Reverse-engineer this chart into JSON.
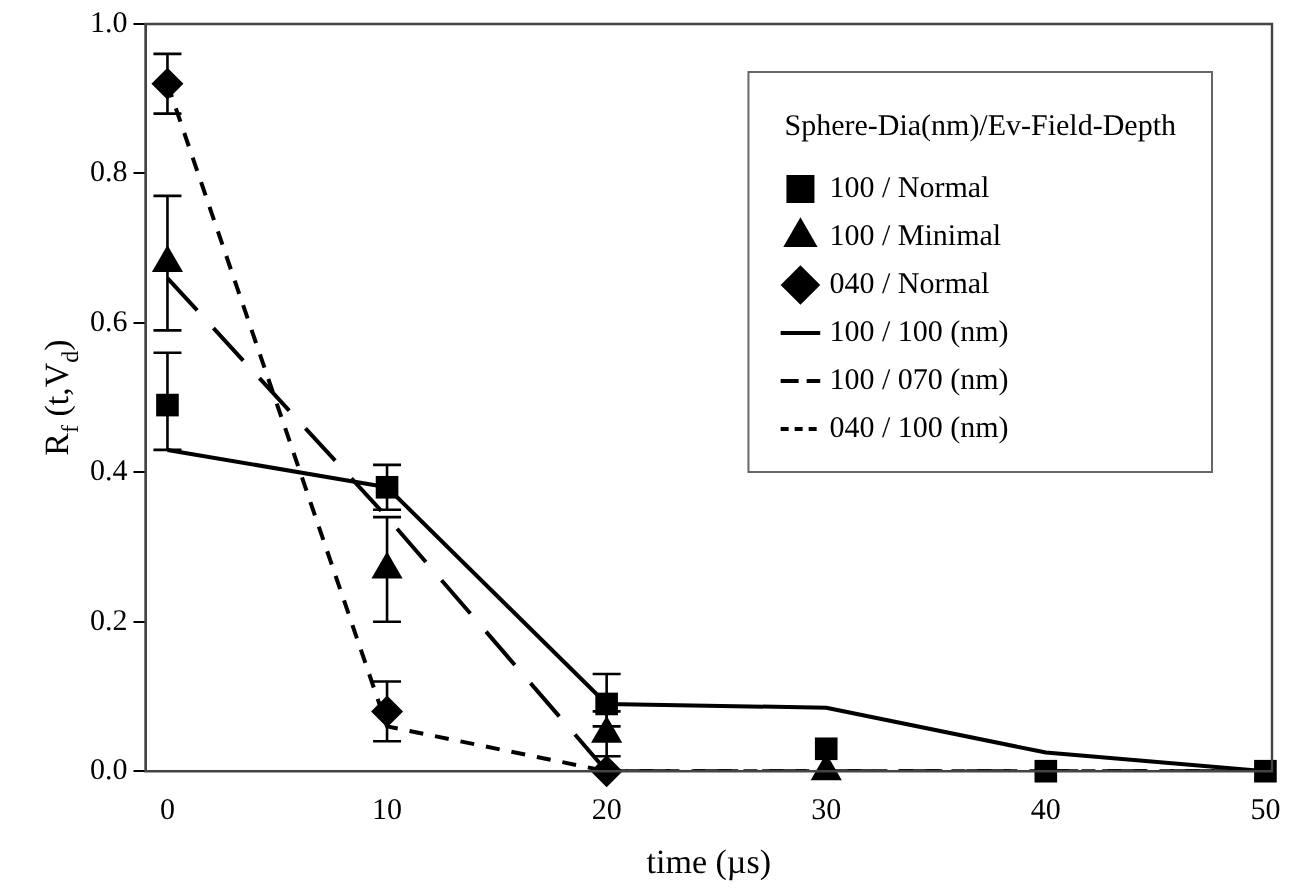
{
  "chart_data": {
    "type": "scatter",
    "xlabel": "time (µs)",
    "ylabel": "R$_{f}$ (t,V$_{d}$)",
    "legend_title": "Sphere-Dia(nm)/Ev-Field-Depth",
    "legend": "top right",
    "grid": false,
    "x": [
      0,
      10,
      20,
      30,
      40,
      50
    ],
    "xlim": [
      -1,
      50.3
    ],
    "xticks": [
      0,
      10,
      20,
      30,
      40,
      50
    ],
    "ylim": [
      0,
      1
    ],
    "yticks": [
      {
        "value": 0,
        "label": "0.0"
      },
      0.2,
      0.4,
      0.6,
      0.8,
      {
        "value": 1,
        "label": "1.0"
      }
    ],
    "series": [
      {
        "name": "100 / Normal",
        "marker": "square",
        "color": "#000000",
        "values": [
          0.49,
          0.38,
          0.09,
          0.03,
          0.0,
          0.0
        ],
        "errors": [
          [
            0.43,
            0.56
          ],
          [
            0.35,
            0.41
          ],
          [
            0.06,
            0.13
          ],
          null,
          null,
          null
        ]
      },
      {
        "name": "100 / Minimal",
        "marker": "triangle",
        "color": "#000000",
        "values": [
          0.68,
          0.27,
          0.05,
          0.0,
          null,
          null
        ],
        "errors": [
          [
            0.59,
            0.77
          ],
          [
            0.2,
            0.34
          ],
          [
            0.02,
            0.08
          ],
          null,
          null,
          null
        ]
      },
      {
        "name": "040 / Normal",
        "marker": "diamond",
        "color": "#000000",
        "values": [
          0.92,
          0.08,
          0.0,
          null,
          null,
          null
        ],
        "errors": [
          [
            0.88,
            0.96
          ],
          [
            0.04,
            0.12
          ],
          null,
          null,
          null,
          null
        ]
      },
      {
        "name": "100 / 100 (nm)",
        "type": "line",
        "line_style": "solid",
        "color": "#000000",
        "values": [
          0.43,
          0.38,
          0.09,
          0.085,
          0.025,
          0.0
        ]
      },
      {
        "name": "100 / 070 (nm)",
        "type": "line",
        "line_style": "longdash",
        "color": "#000000",
        "values": [
          0.66,
          0.34,
          0.0,
          0.0,
          0.0,
          0.0
        ]
      },
      {
        "name": "040 / 100 (nm)",
        "type": "line",
        "line_style": "dashed",
        "color": "#000000",
        "values": [
          0.92,
          0.06,
          0.0,
          0.0,
          0.0,
          0.0
        ]
      }
    ]
  }
}
